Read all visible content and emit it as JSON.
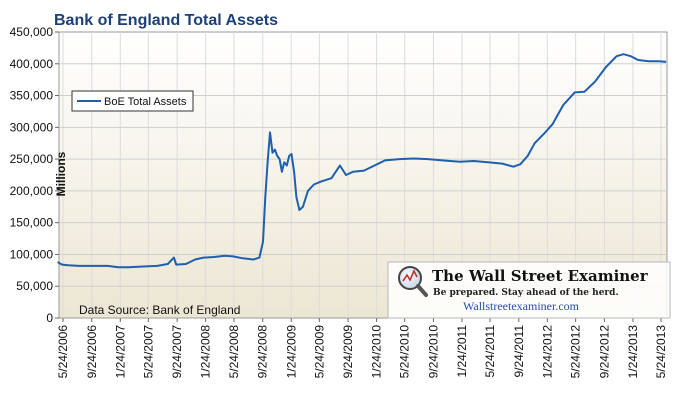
{
  "chart_data": {
    "type": "line",
    "title": "Bank of England Total Assets",
    "ylabel": "Millions",
    "xlabel": "",
    "ylim": [
      0,
      450000
    ],
    "yticks": [
      "0",
      "50,000",
      "100,000",
      "150,000",
      "200,000",
      "250,000",
      "300,000",
      "350,000",
      "400,000",
      "450,000"
    ],
    "xticks": [
      "5/24/2006",
      "9/24/2006",
      "1/24/2007",
      "5/24/2007",
      "9/24/2007",
      "1/24/2008",
      "5/24/2008",
      "9/24/2008",
      "1/24/2009",
      "5/24/2009",
      "9/24/2009",
      "1/24/2010",
      "5/24/2010",
      "9/24/2010",
      "1/24/2011",
      "5/24/2011",
      "9/24/2011",
      "1/24/2012",
      "5/24/2012",
      "9/24/2012",
      "1/24/2013",
      "5/24/2013"
    ],
    "grid": true,
    "legend": "upper-left",
    "source_note": "Data Source: Bank of England",
    "series": [
      {
        "name": "BoE Total Assets",
        "color": "#1f5fae",
        "points": [
          [
            "2006-05-01",
            88000
          ],
          [
            "2006-05-20",
            84000
          ],
          [
            "2006-06-15",
            83000
          ],
          [
            "2006-08-01",
            82000
          ],
          [
            "2006-10-01",
            82000
          ],
          [
            "2006-12-01",
            82000
          ],
          [
            "2007-01-15",
            80000
          ],
          [
            "2007-03-01",
            80000
          ],
          [
            "2007-05-01",
            81000
          ],
          [
            "2007-07-01",
            82000
          ],
          [
            "2007-08-15",
            85000
          ],
          [
            "2007-09-10",
            95000
          ],
          [
            "2007-09-20",
            84000
          ],
          [
            "2007-11-01",
            85000
          ],
          [
            "2007-12-10",
            92000
          ],
          [
            "2008-01-15",
            95000
          ],
          [
            "2008-03-01",
            96000
          ],
          [
            "2008-04-15",
            98000
          ],
          [
            "2008-05-20",
            97000
          ],
          [
            "2008-07-01",
            94000
          ],
          [
            "2008-08-15",
            92000
          ],
          [
            "2008-09-10",
            95000
          ],
          [
            "2008-09-25",
            120000
          ],
          [
            "2008-10-05",
            190000
          ],
          [
            "2008-10-15",
            245000
          ],
          [
            "2008-10-25",
            292000
          ],
          [
            "2008-11-05",
            260000
          ],
          [
            "2008-11-15",
            265000
          ],
          [
            "2008-11-25",
            255000
          ],
          [
            "2008-12-05",
            250000
          ],
          [
            "2008-12-15",
            230000
          ],
          [
            "2008-12-25",
            245000
          ],
          [
            "2009-01-05",
            240000
          ],
          [
            "2009-01-15",
            255000
          ],
          [
            "2009-01-25",
            258000
          ],
          [
            "2009-02-05",
            230000
          ],
          [
            "2009-02-15",
            190000
          ],
          [
            "2009-02-28",
            170000
          ],
          [
            "2009-03-15",
            175000
          ],
          [
            "2009-04-05",
            200000
          ],
          [
            "2009-05-01",
            210000
          ],
          [
            "2009-06-01",
            215000
          ],
          [
            "2009-07-15",
            220000
          ],
          [
            "2009-08-20",
            240000
          ],
          [
            "2009-09-15",
            225000
          ],
          [
            "2009-10-15",
            230000
          ],
          [
            "2009-12-01",
            232000
          ],
          [
            "2010-01-15",
            240000
          ],
          [
            "2010-03-01",
            248000
          ],
          [
            "2010-05-01",
            250000
          ],
          [
            "2010-07-01",
            251000
          ],
          [
            "2010-09-01",
            250000
          ],
          [
            "2010-11-01",
            248000
          ],
          [
            "2011-01-15",
            246000
          ],
          [
            "2011-03-15",
            247000
          ],
          [
            "2011-05-15",
            245000
          ],
          [
            "2011-07-15",
            243000
          ],
          [
            "2011-09-01",
            238000
          ],
          [
            "2011-10-01",
            242000
          ],
          [
            "2011-11-01",
            255000
          ],
          [
            "2011-12-01",
            275000
          ],
          [
            "2012-01-15",
            292000
          ],
          [
            "2012-02-15",
            305000
          ],
          [
            "2012-04-01",
            335000
          ],
          [
            "2012-05-20",
            355000
          ],
          [
            "2012-07-01",
            356000
          ],
          [
            "2012-08-15",
            372000
          ],
          [
            "2012-10-01",
            395000
          ],
          [
            "2012-11-15",
            412000
          ],
          [
            "2012-12-15",
            415000
          ],
          [
            "2013-01-15",
            412000
          ],
          [
            "2013-02-15",
            406000
          ],
          [
            "2013-04-01",
            404000
          ],
          [
            "2013-05-15",
            404000
          ],
          [
            "2013-06-15",
            403000
          ]
        ]
      }
    ]
  },
  "watermark": {
    "title": "The Wall Street Examiner",
    "tagline": "Be prepared. Stay ahead of the herd.",
    "url": "Wallstreetexaminer.com"
  }
}
